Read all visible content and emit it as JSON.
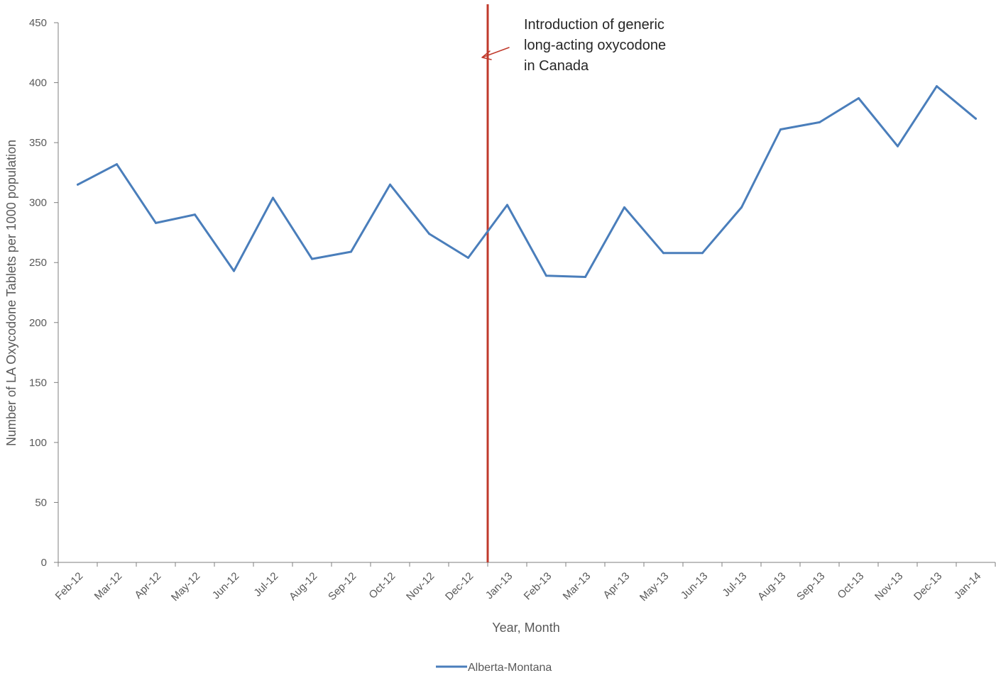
{
  "chart_data": {
    "type": "line",
    "title": "",
    "xlabel": "Year, Month",
    "ylabel": "Number of LA Oxycodone Tablets per 1000 population",
    "ylim": [
      0,
      450
    ],
    "yticks": [
      0,
      50,
      100,
      150,
      200,
      250,
      300,
      350,
      400,
      450
    ],
    "grid": false,
    "legend_position": "bottom",
    "categories": [
      "Feb-12",
      "Mar-12",
      "Apr-12",
      "May-12",
      "Jun-12",
      "Jul-12",
      "Aug-12",
      "Sep-12",
      "Oct-12",
      "Nov-12",
      "Dec-12",
      "Jan-13",
      "Feb-13",
      "Mar-13",
      "Apr-13",
      "May-13",
      "Jun-13",
      "Jul-13",
      "Aug-13",
      "Sep-13",
      "Oct-13",
      "Nov-13",
      "Dec-13",
      "Jan-14"
    ],
    "series": [
      {
        "name": "Alberta-Montana",
        "color": "#4a7ebb",
        "values": [
          315,
          332,
          283,
          290,
          243,
          304,
          253,
          259,
          315,
          274,
          254,
          298,
          239,
          238,
          296,
          258,
          258,
          296,
          361,
          367,
          387,
          347,
          397,
          370
        ]
      }
    ],
    "reference_line": {
      "color": "#c0392b",
      "x_between": [
        "Dec-12",
        "Jan-13"
      ]
    },
    "annotation": {
      "lines": [
        "Introduction of generic",
        "long-acting oxycodone",
        "in Canada"
      ],
      "arrow_color": "#c0392b"
    }
  }
}
